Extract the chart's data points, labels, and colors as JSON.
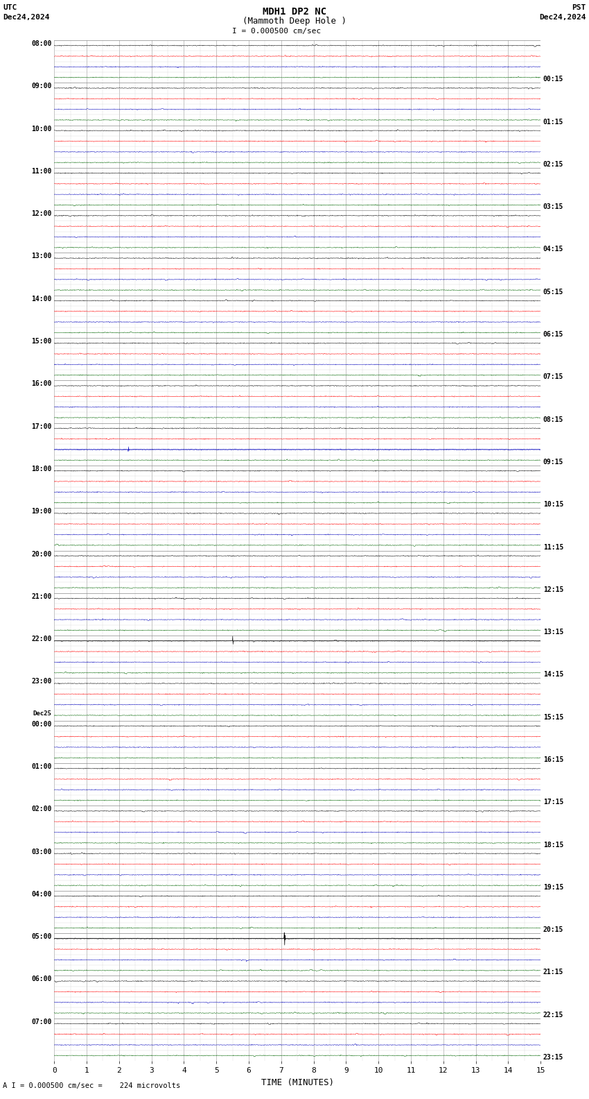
{
  "title_line1": "MDH1 DP2 NC",
  "title_line2": "(Mammoth Deep Hole )",
  "scale_text": "I = 0.000500 cm/sec",
  "utc_label": "UTC",
  "pst_label": "PST",
  "utc_date": "Dec24,2024",
  "pst_date": "Dec24,2024",
  "bottom_label": "A I = 0.000500 cm/sec =    224 microvolts",
  "xlabel": "TIME (MINUTES)",
  "bg_color": "#ffffff",
  "trace_colors": [
    "#000000",
    "#ff0000",
    "#0000bb",
    "#006600"
  ],
  "left_labels": [
    "08:00",
    "09:00",
    "10:00",
    "11:00",
    "12:00",
    "13:00",
    "14:00",
    "15:00",
    "16:00",
    "17:00",
    "18:00",
    "19:00",
    "20:00",
    "21:00",
    "22:00",
    "23:00",
    "00:00",
    "01:00",
    "02:00",
    "03:00",
    "04:00",
    "05:00",
    "06:00",
    "07:00"
  ],
  "dec25_row": 16,
  "right_labels": [
    "00:15",
    "01:15",
    "02:15",
    "03:15",
    "04:15",
    "05:15",
    "06:15",
    "07:15",
    "08:15",
    "09:15",
    "10:15",
    "11:15",
    "12:15",
    "13:15",
    "14:15",
    "15:15",
    "16:15",
    "17:15",
    "18:15",
    "19:15",
    "20:15",
    "21:15",
    "22:15",
    "23:15"
  ],
  "num_time_rows": 24,
  "traces_per_row": 4,
  "minutes_total": 15,
  "samples_per_minute": 100,
  "noise_amplitude": 0.018,
  "spike_row_green": 9,
  "spike_green_minute": 2.3,
  "spike_col23_minute": 5.5,
  "spike_col23_row": 14,
  "spike_eq_row": 21,
  "spike_eq_minute": 7.1
}
